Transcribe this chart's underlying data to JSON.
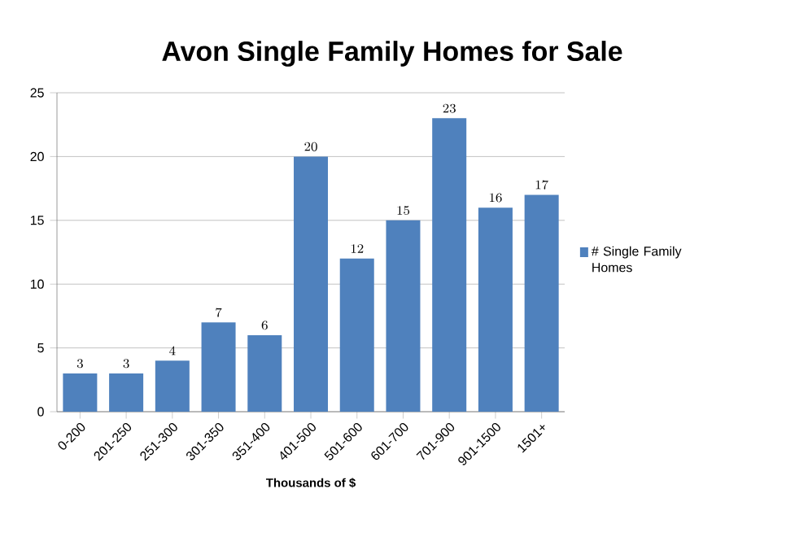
{
  "chart_data": {
    "type": "bar",
    "title": "Avon Single Family Homes for Sale",
    "xlabel": "Thousands of $",
    "categories": [
      "0-200",
      "201-250",
      "251-300",
      "301-350",
      "351-400",
      "401-500",
      "501-600",
      "601-700",
      "701-900",
      "901-1500",
      "1501+"
    ],
    "series": [
      {
        "name": "# Single Family Homes",
        "color": "#4f81bd",
        "values": [
          3,
          3,
          4,
          7,
          6,
          20,
          12,
          15,
          23,
          16,
          17
        ]
      }
    ],
    "ylim": [
      0,
      25
    ],
    "yticks": [
      0,
      5,
      10,
      15,
      20,
      25
    ],
    "grid": "y",
    "legend": "right",
    "data_labels": true
  }
}
